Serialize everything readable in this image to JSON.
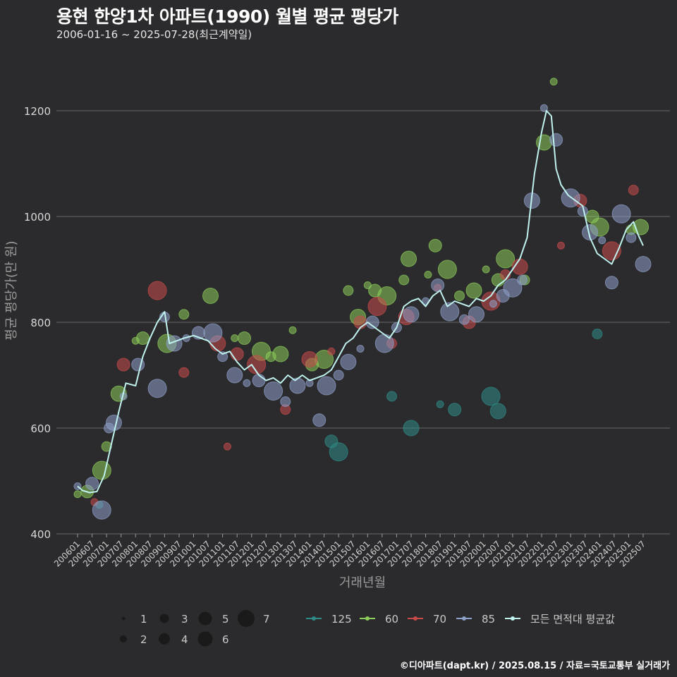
{
  "header": {
    "title": "용현 한양1차 아파트(1990) 월별 평균 평당가",
    "subtitle": "2006-01-16 ~ 2025-07-28(최근계약일)"
  },
  "footer": {
    "credit": "©디아파트(dapt.kr) / 2025.08.15 / 자료=국토교통부 실거래가"
  },
  "colors": {
    "background": "#2b2b2d",
    "grid": "#6a6a6a",
    "avg_line": "#bff2ee",
    "s125": "#2e8b87",
    "s60": "#8ccc5a",
    "s70": "#c94a4a",
    "s85": "#8e9fc8"
  },
  "chart_data": {
    "type": "scatter",
    "title": "용현 한양1차 아파트(1990) 월별 평균 평당가",
    "xlabel": "거래년월",
    "ylabel": "평균 평당가(만 원)",
    "ylim": [
      400,
      1300
    ],
    "yticks": [
      400,
      600,
      800,
      1000,
      1200
    ],
    "grid": true,
    "x_range": [
      "2006-01",
      "2025-07"
    ],
    "x_tick_labels": [
      "200601",
      "200607",
      "200701",
      "200707",
      "200801",
      "200807",
      "200901",
      "200907",
      "201001",
      "201007",
      "201101",
      "201107",
      "201201",
      "201207",
      "201301",
      "201307",
      "201401",
      "201407",
      "201501",
      "201507",
      "201601",
      "201607",
      "201701",
      "201707",
      "201801",
      "201807",
      "201901",
      "201907",
      "202001",
      "202007",
      "202101",
      "202107",
      "202201",
      "202207",
      "202301",
      "202307",
      "202401",
      "202407",
      "202501",
      "202507"
    ],
    "size_legend": {
      "title": "",
      "values": [
        1,
        2,
        3,
        4,
        5,
        6,
        7
      ]
    },
    "legend_placement": "bottom",
    "series": [
      {
        "name": "125",
        "key": "s125",
        "points": [
          [
            "2006-10",
            455
          ],
          [
            "2014-10",
            575
          ],
          [
            "2015-01",
            555
          ],
          [
            "2016-11",
            660
          ],
          [
            "2017-07",
            600
          ],
          [
            "2018-07",
            645
          ],
          [
            "2019-01",
            635
          ],
          [
            "2020-04",
            660
          ],
          [
            "2020-07",
            632
          ],
          [
            "2023-12",
            778
          ]
        ]
      },
      {
        "name": "60",
        "key": "s60",
        "points": [
          [
            "2006-01",
            475
          ],
          [
            "2006-05",
            480
          ],
          [
            "2006-11",
            520
          ],
          [
            "2007-01",
            565
          ],
          [
            "2007-06",
            665
          ],
          [
            "2008-01",
            765
          ],
          [
            "2008-04",
            770
          ],
          [
            "2009-02",
            760
          ],
          [
            "2009-09",
            815
          ],
          [
            "2010-08",
            850
          ],
          [
            "2011-06",
            770
          ],
          [
            "2011-10",
            770
          ],
          [
            "2012-05",
            745
          ],
          [
            "2012-09",
            735
          ],
          [
            "2013-01",
            740
          ],
          [
            "2013-06",
            785
          ],
          [
            "2014-02",
            720
          ],
          [
            "2014-07",
            730
          ],
          [
            "2015-05",
            860
          ],
          [
            "2015-09",
            810
          ],
          [
            "2016-01",
            870
          ],
          [
            "2016-04",
            860
          ],
          [
            "2016-09",
            850
          ],
          [
            "2017-04",
            880
          ],
          [
            "2017-06",
            920
          ],
          [
            "2018-02",
            890
          ],
          [
            "2018-05",
            945
          ],
          [
            "2018-10",
            900
          ],
          [
            "2019-03",
            850
          ],
          [
            "2019-09",
            860
          ],
          [
            "2020-02",
            900
          ],
          [
            "2020-07",
            880
          ],
          [
            "2020-10",
            920
          ],
          [
            "2021-06",
            880
          ],
          [
            "2022-02",
            1140
          ],
          [
            "2022-06",
            1255
          ],
          [
            "2023-10",
            1000
          ],
          [
            "2024-01",
            980
          ],
          [
            "2025-02",
            975
          ],
          [
            "2025-06",
            980
          ]
        ]
      },
      {
        "name": "70",
        "key": "s70",
        "points": [
          [
            "2006-08",
            460
          ],
          [
            "2007-08",
            720
          ],
          [
            "2008-10",
            860
          ],
          [
            "2009-09",
            705
          ],
          [
            "2010-11",
            760
          ],
          [
            "2011-03",
            565
          ],
          [
            "2011-07",
            740
          ],
          [
            "2012-03",
            720
          ],
          [
            "2013-03",
            635
          ],
          [
            "2014-01",
            730
          ],
          [
            "2014-10",
            745
          ],
          [
            "2015-10",
            800
          ],
          [
            "2016-05",
            830
          ],
          [
            "2016-11",
            760
          ],
          [
            "2017-05",
            810
          ],
          [
            "2018-06",
            865
          ],
          [
            "2019-07",
            800
          ],
          [
            "2020-04",
            840
          ],
          [
            "2020-10",
            890
          ],
          [
            "2021-04",
            905
          ],
          [
            "2022-09",
            945
          ],
          [
            "2023-05",
            1030
          ],
          [
            "2024-06",
            935
          ],
          [
            "2025-03",
            1050
          ]
        ]
      },
      {
        "name": "85",
        "key": "s85",
        "points": [
          [
            "2006-01",
            490
          ],
          [
            "2006-07",
            495
          ],
          [
            "2006-11",
            445
          ],
          [
            "2007-02",
            600
          ],
          [
            "2007-04",
            610
          ],
          [
            "2007-08",
            660
          ],
          [
            "2008-02",
            720
          ],
          [
            "2008-10",
            675
          ],
          [
            "2009-01",
            810
          ],
          [
            "2009-05",
            760
          ],
          [
            "2009-10",
            770
          ],
          [
            "2010-03",
            780
          ],
          [
            "2010-09",
            780
          ],
          [
            "2011-01",
            735
          ],
          [
            "2011-06",
            700
          ],
          [
            "2011-11",
            685
          ],
          [
            "2012-04",
            690
          ],
          [
            "2012-10",
            670
          ],
          [
            "2013-03",
            650
          ],
          [
            "2013-08",
            680
          ],
          [
            "2014-01",
            685
          ],
          [
            "2014-05",
            615
          ],
          [
            "2014-08",
            680
          ],
          [
            "2015-01",
            700
          ],
          [
            "2015-05",
            725
          ],
          [
            "2015-10",
            750
          ],
          [
            "2016-03",
            800
          ],
          [
            "2016-08",
            760
          ],
          [
            "2017-01",
            790
          ],
          [
            "2017-07",
            815
          ],
          [
            "2018-01",
            840
          ],
          [
            "2018-06",
            870
          ],
          [
            "2018-11",
            820
          ],
          [
            "2019-05",
            805
          ],
          [
            "2019-10",
            815
          ],
          [
            "2020-05",
            835
          ],
          [
            "2020-09",
            850
          ],
          [
            "2021-01",
            865
          ],
          [
            "2021-05",
            880
          ],
          [
            "2021-09",
            1030
          ],
          [
            "2022-02",
            1205
          ],
          [
            "2022-07",
            1145
          ],
          [
            "2023-01",
            1035
          ],
          [
            "2023-06",
            1010
          ],
          [
            "2023-09",
            970
          ],
          [
            "2024-02",
            955
          ],
          [
            "2024-06",
            875
          ],
          [
            "2024-10",
            1005
          ],
          [
            "2025-02",
            960
          ],
          [
            "2025-07",
            910
          ]
        ]
      }
    ],
    "average_series": {
      "name": "모든 면적대 평균값",
      "points": [
        [
          "2006-01",
          490
        ],
        [
          "2006-03",
          482
        ],
        [
          "2006-06",
          478
        ],
        [
          "2006-09",
          480
        ],
        [
          "2006-12",
          510
        ],
        [
          "2007-03",
          570
        ],
        [
          "2007-06",
          630
        ],
        [
          "2007-09",
          685
        ],
        [
          "2008-01",
          680
        ],
        [
          "2008-04",
          735
        ],
        [
          "2008-07",
          770
        ],
        [
          "2008-10",
          800
        ],
        [
          "2009-01",
          820
        ],
        [
          "2009-03",
          760
        ],
        [
          "2009-06",
          765
        ],
        [
          "2009-09",
          770
        ],
        [
          "2010-01",
          775
        ],
        [
          "2010-04",
          770
        ],
        [
          "2010-07",
          765
        ],
        [
          "2010-10",
          750
        ],
        [
          "2011-01",
          740
        ],
        [
          "2011-04",
          745
        ],
        [
          "2011-07",
          725
        ],
        [
          "2011-10",
          710
        ],
        [
          "2012-01",
          720
        ],
        [
          "2012-04",
          700
        ],
        [
          "2012-07",
          690
        ],
        [
          "2012-10",
          695
        ],
        [
          "2013-01",
          685
        ],
        [
          "2013-04",
          700
        ],
        [
          "2013-07",
          690
        ],
        [
          "2013-10",
          700
        ],
        [
          "2014-01",
          690
        ],
        [
          "2014-04",
          695
        ],
        [
          "2014-07",
          700
        ],
        [
          "2014-10",
          710
        ],
        [
          "2015-01",
          735
        ],
        [
          "2015-04",
          760
        ],
        [
          "2015-07",
          770
        ],
        [
          "2015-10",
          790
        ],
        [
          "2016-01",
          800
        ],
        [
          "2016-04",
          790
        ],
        [
          "2016-07",
          780
        ],
        [
          "2016-10",
          770
        ],
        [
          "2017-01",
          790
        ],
        [
          "2017-04",
          830
        ],
        [
          "2017-07",
          840
        ],
        [
          "2017-10",
          845
        ],
        [
          "2018-01",
          830
        ],
        [
          "2018-04",
          850
        ],
        [
          "2018-07",
          860
        ],
        [
          "2018-10",
          830
        ],
        [
          "2019-01",
          840
        ],
        [
          "2019-04",
          835
        ],
        [
          "2019-07",
          830
        ],
        [
          "2019-10",
          845
        ],
        [
          "2020-01",
          840
        ],
        [
          "2020-04",
          850
        ],
        [
          "2020-07",
          870
        ],
        [
          "2020-10",
          880
        ],
        [
          "2021-01",
          900
        ],
        [
          "2021-04",
          920
        ],
        [
          "2021-07",
          960
        ],
        [
          "2021-10",
          1080
        ],
        [
          "2022-01",
          1160
        ],
        [
          "2022-03",
          1200
        ],
        [
          "2022-05",
          1190
        ],
        [
          "2022-07",
          1090
        ],
        [
          "2022-09",
          1060
        ],
        [
          "2022-12",
          1040
        ],
        [
          "2023-03",
          1030
        ],
        [
          "2023-06",
          1020
        ],
        [
          "2023-09",
          960
        ],
        [
          "2023-12",
          930
        ],
        [
          "2024-03",
          920
        ],
        [
          "2024-06",
          910
        ],
        [
          "2024-09",
          940
        ],
        [
          "2024-12",
          975
        ],
        [
          "2025-03",
          990
        ],
        [
          "2025-05",
          965
        ],
        [
          "2025-07",
          945
        ]
      ]
    }
  },
  "legend": {
    "sizes": [
      "1",
      "2",
      "3",
      "4",
      "5",
      "6",
      "7"
    ],
    "series": [
      "125",
      "60",
      "70",
      "85",
      "모든 면적대 평균값"
    ]
  }
}
